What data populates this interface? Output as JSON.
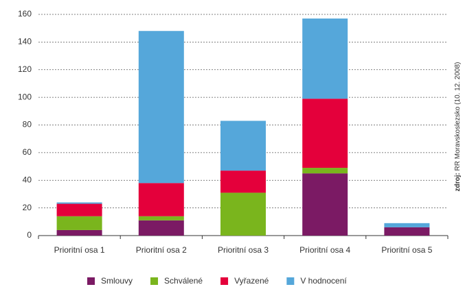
{
  "chart_data": {
    "type": "stacked_bar",
    "categories": [
      "Prioritní osa 1",
      "Prioritní osa 2",
      "Prioritní osa 3",
      "Prioritní osa 4",
      "Prioritní osa 5"
    ],
    "series": [
      {
        "name": "Smlouvy",
        "color": "#7b1a64",
        "values": [
          4,
          11,
          0,
          45,
          6
        ]
      },
      {
        "name": "Schválené",
        "color": "#7ab51d",
        "values": [
          10,
          3,
          31,
          4,
          0
        ]
      },
      {
        "name": "Vyřazené",
        "color": "#e4003b",
        "values": [
          9,
          24,
          16,
          50,
          0
        ]
      },
      {
        "name": "V hodnocení",
        "color": "#55a7da",
        "values": [
          1,
          110,
          36,
          58,
          3
        ]
      }
    ],
    "ylim": [
      0,
      160
    ],
    "yticks": [
      0,
      20,
      40,
      60,
      80,
      100,
      120,
      140,
      160
    ],
    "grid": true,
    "source_label": "zdroj:",
    "source": "RR Moravskoslezsko (10. 12. 2008)"
  }
}
